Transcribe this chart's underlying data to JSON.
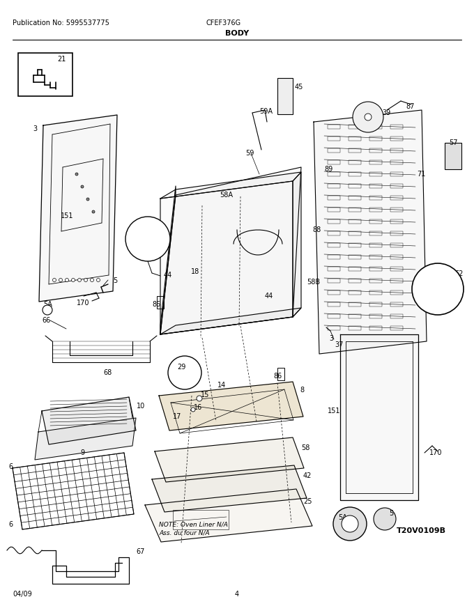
{
  "pub_no": "Publication No: 5995537775",
  "model": "CFEF376G",
  "section": "BODY",
  "date": "04/09",
  "page": "4",
  "diagram_id": "T20V0109B",
  "note_line1": "NOTE: Oven Liner N/A",
  "note_line2": "Ass. du four N/A",
  "bg_color": "#ffffff",
  "line_color": "#000000",
  "fig_width": 6.8,
  "fig_height": 8.8,
  "dpi": 100
}
